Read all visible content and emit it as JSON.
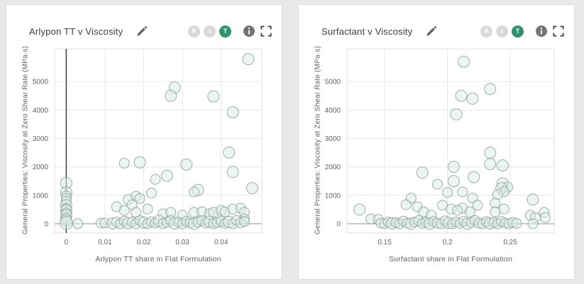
{
  "page": {
    "background": "#e9e9e9"
  },
  "colors": {
    "accent_green": "#2f926b",
    "badge_inactive": "#d9d9d9",
    "icon_gray": "#5f6368",
    "info_gray": "#757575",
    "title_text": "#3c4043",
    "tick_text": "#5f6368",
    "grid": "#e7e7e7",
    "plot_border": "#e0e0e0",
    "zero_y_line": "#9aa0a6",
    "zero_x_line": "#3f4245",
    "bubble_fill": "#dcebe4",
    "bubble_stroke": "#8ba29a"
  },
  "cards": [
    {
      "title": "Arlypon TT v Viscosity",
      "edit_icon": "pencil-icon",
      "badges": [
        {
          "label": "R",
          "active": false
        },
        {
          "label": "I",
          "active": false
        },
        {
          "label": "T",
          "active": true
        }
      ],
      "info_icon": "info-icon",
      "fullscreen_icon": "fullscreen-icon"
    },
    {
      "title": "Surfactant v Viscosity",
      "edit_icon": "pencil-icon",
      "badges": [
        {
          "label": "R",
          "active": false
        },
        {
          "label": "I",
          "active": false
        },
        {
          "label": "T",
          "active": true
        }
      ],
      "info_icon": "info-icon",
      "fullscreen_icon": "fullscreen-icon"
    }
  ],
  "chart_data": [
    {
      "type": "scatter",
      "title": "Arlypon TT v Viscosity",
      "xlabel": "Arlypon TT share in Flat Formulation",
      "ylabel": "General Properties: Viscosity at Zero Shear Rate (MPa·s)",
      "xlim": [
        -0.003,
        0.0505
      ],
      "ylim": [
        -325,
        6150
      ],
      "grid": true,
      "legend": false,
      "show_x_zero_line": true,
      "show_y_zero_line": true,
      "xticks": {
        "values": [
          0,
          0.01,
          0.02,
          0.03,
          0.04
        ],
        "labels": [
          "0",
          "0.01",
          "0.02",
          "0.03",
          "0.04"
        ]
      },
      "yticks": {
        "values": [
          0,
          1000,
          2000,
          3000,
          4000,
          5000
        ],
        "labels": [
          "0",
          "1000",
          "2000",
          "3000",
          "4000",
          "5000"
        ]
      },
      "points": [
        [
          0,
          1430,
          8
        ],
        [
          0,
          1100,
          8
        ],
        [
          0,
          980,
          7
        ],
        [
          0,
          890,
          7
        ],
        [
          0,
          790,
          7
        ],
        [
          0,
          650,
          8
        ],
        [
          0,
          540,
          7
        ],
        [
          0,
          470,
          8
        ],
        [
          0,
          380,
          7
        ],
        [
          0,
          300,
          8
        ],
        [
          0,
          210,
          7
        ],
        [
          0,
          120,
          8
        ],
        [
          0,
          30,
          9
        ],
        [
          0.003,
          0,
          7
        ],
        [
          0.009,
          20,
          7
        ],
        [
          0.047,
          5790,
          8
        ],
        [
          0.028,
          4790,
          8
        ],
        [
          0.027,
          4500,
          8
        ],
        [
          0.038,
          4480,
          8
        ],
        [
          0.043,
          3920,
          8
        ],
        [
          0.042,
          2510,
          8
        ],
        [
          0.019,
          2160,
          8
        ],
        [
          0.015,
          2130,
          7
        ],
        [
          0.031,
          2080,
          8
        ],
        [
          0.043,
          1820,
          8
        ],
        [
          0.026,
          1690,
          8
        ],
        [
          0.023,
          1560,
          7
        ],
        [
          0.048,
          1250,
          8
        ],
        [
          0.034,
          1190,
          8
        ],
        [
          0.033,
          1120,
          7
        ],
        [
          0.022,
          1080,
          7
        ],
        [
          0.018,
          970,
          7
        ],
        [
          0.016,
          850,
          7
        ],
        [
          0.019,
          890,
          7
        ],
        [
          0.017,
          670,
          7
        ],
        [
          0.013,
          600,
          7
        ],
        [
          0.015,
          470,
          7
        ],
        [
          0.021,
          520,
          7
        ],
        [
          0.018,
          400,
          7
        ],
        [
          0.025,
          350,
          7
        ],
        [
          0.027,
          400,
          7
        ],
        [
          0.03,
          300,
          7
        ],
        [
          0.033,
          400,
          7
        ],
        [
          0.035,
          420,
          7
        ],
        [
          0.037,
          350,
          7
        ],
        [
          0.038,
          400,
          7
        ],
        [
          0.04,
          470,
          7
        ],
        [
          0.041,
          420,
          7
        ],
        [
          0.043,
          520,
          7
        ],
        [
          0.045,
          550,
          7
        ],
        [
          0.046,
          400,
          7
        ],
        [
          0.046,
          170,
          7
        ],
        [
          0.01,
          30,
          7
        ],
        [
          0.012,
          10,
          8
        ],
        [
          0.013,
          60,
          7
        ],
        [
          0.014,
          0,
          7
        ],
        [
          0.015,
          90,
          7
        ],
        [
          0.016,
          20,
          8
        ],
        [
          0.017,
          60,
          7
        ],
        [
          0.018,
          0,
          7
        ],
        [
          0.019,
          110,
          7
        ],
        [
          0.02,
          40,
          8
        ],
        [
          0.021,
          0,
          7
        ],
        [
          0.022,
          70,
          7
        ],
        [
          0.023,
          20,
          7
        ],
        [
          0.024,
          100,
          8
        ],
        [
          0.025,
          0,
          7
        ],
        [
          0.026,
          50,
          7
        ],
        [
          0.027,
          110,
          7
        ],
        [
          0.028,
          10,
          8
        ],
        [
          0.029,
          60,
          7
        ],
        [
          0.03,
          0,
          7
        ],
        [
          0.031,
          90,
          7
        ],
        [
          0.032,
          30,
          7
        ],
        [
          0.033,
          0,
          8
        ],
        [
          0.034,
          60,
          7
        ],
        [
          0.035,
          110,
          7
        ],
        [
          0.036,
          20,
          7
        ],
        [
          0.037,
          70,
          8
        ],
        [
          0.038,
          0,
          7
        ],
        [
          0.039,
          40,
          7
        ],
        [
          0.04,
          90,
          7
        ],
        [
          0.041,
          10,
          7
        ],
        [
          0.042,
          60,
          8
        ],
        [
          0.043,
          0,
          7
        ],
        [
          0.044,
          120,
          7
        ],
        [
          0.045,
          30,
          7
        ],
        [
          0.046,
          80,
          7
        ]
      ]
    },
    {
      "type": "scatter",
      "title": "Surfactant v Viscosity",
      "xlabel": "Surfactant share in Flat Formulation",
      "ylabel": "General Properties: Viscosity at Zero Shear Rate (MPa·s)",
      "xlim": [
        0.12,
        0.285
      ],
      "ylim": [
        -325,
        6150
      ],
      "grid": true,
      "legend": false,
      "show_x_zero_line": false,
      "show_y_zero_line": true,
      "xticks": {
        "values": [
          0.15,
          0.2,
          0.25
        ],
        "labels": [
          "0.15",
          "0.2",
          "0.25"
        ]
      },
      "yticks": {
        "values": [
          0,
          1000,
          2000,
          3000,
          4000,
          5000
        ],
        "labels": [
          "0",
          "1000",
          "2000",
          "3000",
          "4000",
          "5000"
        ]
      },
      "points": [
        [
          0.213,
          5700,
          8
        ],
        [
          0.234,
          4740,
          8
        ],
        [
          0.211,
          4500,
          8
        ],
        [
          0.22,
          4400,
          8
        ],
        [
          0.207,
          3850,
          8
        ],
        [
          0.234,
          2500,
          8
        ],
        [
          0.234,
          2100,
          8
        ],
        [
          0.244,
          2050,
          8
        ],
        [
          0.205,
          2000,
          8
        ],
        [
          0.18,
          1800,
          8
        ],
        [
          0.221,
          1640,
          8
        ],
        [
          0.205,
          1500,
          8
        ],
        [
          0.244,
          1420,
          8
        ],
        [
          0.192,
          1390,
          7
        ],
        [
          0.248,
          1290,
          7
        ],
        [
          0.243,
          1250,
          8
        ],
        [
          0.245,
          1130,
          7
        ],
        [
          0.212,
          1120,
          7
        ],
        [
          0.2,
          1100,
          7
        ],
        [
          0.24,
          1030,
          7
        ],
        [
          0.171,
          900,
          7
        ],
        [
          0.22,
          900,
          7
        ],
        [
          0.268,
          850,
          8
        ],
        [
          0.238,
          720,
          7
        ],
        [
          0.167,
          670,
          7
        ],
        [
          0.196,
          650,
          7
        ],
        [
          0.224,
          650,
          7
        ],
        [
          0.176,
          600,
          7
        ],
        [
          0.212,
          550,
          7
        ],
        [
          0.203,
          520,
          7
        ],
        [
          0.245,
          520,
          7
        ],
        [
          0.13,
          500,
          8
        ],
        [
          0.208,
          470,
          7
        ],
        [
          0.181,
          420,
          7
        ],
        [
          0.218,
          420,
          7
        ],
        [
          0.238,
          420,
          7
        ],
        [
          0.277,
          400,
          7
        ],
        [
          0.187,
          300,
          7
        ],
        [
          0.266,
          300,
          7
        ],
        [
          0.27,
          220,
          7
        ],
        [
          0.278,
          220,
          7
        ],
        [
          0.139,
          170,
          7
        ],
        [
          0.145,
          150,
          7
        ],
        [
          0.147,
          20,
          7
        ],
        [
          0.15,
          0,
          7
        ],
        [
          0.153,
          60,
          7
        ],
        [
          0.156,
          10,
          8
        ],
        [
          0.159,
          40,
          7
        ],
        [
          0.162,
          0,
          7
        ],
        [
          0.165,
          90,
          7
        ],
        [
          0.168,
          20,
          7
        ],
        [
          0.171,
          0,
          8
        ],
        [
          0.174,
          60,
          7
        ],
        [
          0.177,
          110,
          7
        ],
        [
          0.18,
          10,
          7
        ],
        [
          0.183,
          50,
          7
        ],
        [
          0.186,
          0,
          8
        ],
        [
          0.189,
          80,
          7
        ],
        [
          0.192,
          20,
          7
        ],
        [
          0.195,
          0,
          7
        ],
        [
          0.198,
          100,
          7
        ],
        [
          0.201,
          30,
          8
        ],
        [
          0.204,
          0,
          7
        ],
        [
          0.207,
          60,
          7
        ],
        [
          0.21,
          10,
          7
        ],
        [
          0.213,
          90,
          7
        ],
        [
          0.216,
          0,
          8
        ],
        [
          0.219,
          40,
          7
        ],
        [
          0.222,
          110,
          7
        ],
        [
          0.225,
          20,
          7
        ],
        [
          0.228,
          0,
          7
        ],
        [
          0.231,
          70,
          7
        ],
        [
          0.234,
          10,
          8
        ],
        [
          0.237,
          50,
          7
        ],
        [
          0.24,
          0,
          7
        ],
        [
          0.243,
          80,
          7
        ],
        [
          0.246,
          20,
          7
        ],
        [
          0.249,
          0,
          7
        ],
        [
          0.252,
          40,
          7
        ],
        [
          0.255,
          10,
          7
        ],
        [
          0.268,
          0,
          7
        ]
      ]
    }
  ]
}
